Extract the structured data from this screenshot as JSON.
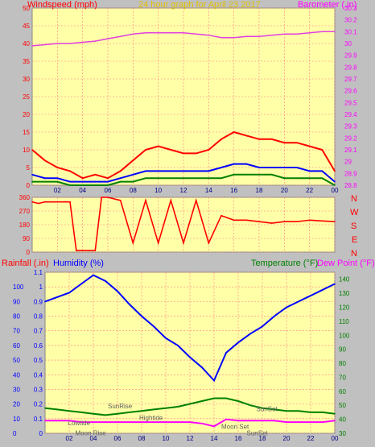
{
  "header": {
    "left": "Windspeed (mph)",
    "center": "24 hour graph for April 23 2017",
    "right": "Barometer (.in)"
  },
  "direction_letters": [
    "N",
    "W",
    "S",
    "E",
    "N"
  ],
  "bottom_header": {
    "rainfall": "Rainfall (.in)",
    "humidity": "Humidity (%)",
    "temperature": "Temperature (°F)",
    "dewpoint": "Dew Point (°F)"
  },
  "colors": {
    "background_panel": "#ffffa8",
    "frame": "#c0c0c0",
    "wind": "#ff0000",
    "wind_avg": "#0000ff",
    "wind_low": "#008000",
    "barometer": "#e040e0",
    "humidity": "#0000ff",
    "temperature": "#008000",
    "dewpoint": "#ff00ff",
    "grid": "#ff8080"
  },
  "chart_data": [
    {
      "type": "line",
      "panel": "wind-barometer",
      "x_ticks": [
        "02",
        "04",
        "06",
        "08",
        "10",
        "12",
        "14",
        "16",
        "18",
        "20",
        "22",
        "00"
      ],
      "y_left_ticks": [
        "0",
        "5",
        "10",
        "15",
        "20",
        "25",
        "30",
        "35",
        "40",
        "45",
        "50"
      ],
      "y_left_range": [
        0,
        50
      ],
      "y_right_ticks": [
        "28.8",
        "28.9",
        "29",
        "29.1",
        "29.2",
        "29.3",
        "29.4",
        "29.5",
        "29.6",
        "29.7",
        "29.8",
        "29.9",
        "30",
        "30.1",
        "30.2",
        "30.3"
      ],
      "y_right_range": [
        28.8,
        30.3
      ],
      "series": [
        {
          "axis": "left",
          "x": [
            0,
            1,
            2,
            3,
            4,
            5,
            6,
            7,
            8,
            9,
            10,
            11,
            12,
            13,
            14,
            15,
            16,
            17,
            18,
            19,
            20,
            21,
            22,
            23,
            24
          ],
          "y": [
            10,
            7,
            5,
            4,
            2,
            3,
            2,
            4,
            7,
            10,
            11,
            10,
            9,
            9,
            10,
            13,
            15,
            14,
            13,
            13,
            12,
            12,
            11,
            10,
            4
          ]
        },
        {
          "axis": "left",
          "x": [
            0,
            1,
            2,
            3,
            4,
            5,
            6,
            7,
            8,
            9,
            10,
            11,
            12,
            13,
            14,
            15,
            16,
            17,
            18,
            19,
            20,
            21,
            22,
            23,
            24
          ],
          "y": [
            3,
            2,
            2,
            1,
            1,
            1,
            1,
            2,
            3,
            4,
            4,
            4,
            4,
            4,
            4,
            5,
            6,
            6,
            5,
            5,
            5,
            5,
            4,
            4,
            1
          ]
        },
        {
          "axis": "left",
          "x": [
            0,
            1,
            2,
            3,
            4,
            5,
            6,
            7,
            8,
            9,
            10,
            11,
            12,
            13,
            14,
            15,
            16,
            17,
            18,
            19,
            20,
            21,
            22,
            23,
            24
          ],
          "y": [
            1,
            1,
            1,
            0,
            0,
            0,
            0,
            1,
            1,
            2,
            2,
            2,
            2,
            2,
            2,
            2,
            3,
            3,
            3,
            3,
            2,
            2,
            2,
            2,
            0
          ]
        },
        {
          "axis": "right",
          "x": [
            0,
            1,
            2,
            3,
            4,
            5,
            6,
            7,
            8,
            9,
            10,
            11,
            12,
            13,
            14,
            15,
            16,
            17,
            18,
            19,
            20,
            21,
            22,
            23,
            24
          ],
          "y": [
            29.98,
            29.99,
            30.0,
            30.0,
            30.01,
            30.02,
            30.04,
            30.06,
            30.08,
            30.09,
            30.09,
            30.09,
            30.09,
            30.08,
            30.07,
            30.05,
            30.05,
            30.06,
            30.06,
            30.07,
            30.08,
            30.08,
            30.09,
            30.1,
            30.1
          ]
        }
      ]
    },
    {
      "type": "line",
      "panel": "wind-direction",
      "y_ticks": [
        "0",
        "90",
        "180",
        "270",
        "360"
      ],
      "y_range": [
        0,
        360
      ],
      "series": [
        {
          "x": [
            0,
            0.5,
            1,
            2,
            3,
            3.5,
            4,
            5,
            5.5,
            6,
            7,
            8,
            9,
            10,
            11,
            12,
            13,
            14,
            15,
            16,
            17,
            18,
            19,
            20,
            21,
            22,
            23,
            24
          ],
          "y": [
            330,
            320,
            330,
            330,
            330,
            10,
            10,
            10,
            360,
            360,
            340,
            60,
            340,
            60,
            340,
            60,
            340,
            60,
            240,
            210,
            210,
            200,
            190,
            200,
            200,
            210,
            205,
            200
          ]
        }
      ]
    },
    {
      "type": "line",
      "panel": "rain-humidity-temp",
      "x_ticks": [
        "02",
        "04",
        "06",
        "08",
        "10",
        "12",
        "14",
        "16",
        "18",
        "20",
        "22",
        "00"
      ],
      "y_left_ticks": [
        "0",
        "0.1",
        "0.2",
        "0.3",
        "0.4",
        "0.5",
        "0.6",
        "0.7",
        "0.8",
        "0.9",
        "1",
        "1.1"
      ],
      "y_left_range": [
        0,
        1.1
      ],
      "y_left_outer_ticks": [
        "0",
        "10",
        "20",
        "30",
        "40",
        "50",
        "60",
        "70",
        "80",
        "90",
        "100"
      ],
      "y_right_ticks": [
        "30",
        "40",
        "50",
        "60",
        "70",
        "80",
        "90",
        "100",
        "110",
        "120",
        "130",
        "140"
      ],
      "y_right_range": [
        30,
        145
      ],
      "annotations": [
        "SunRise",
        "Lowtide",
        "Moon Rise",
        "Hightide",
        "Moon Set",
        "SunSet",
        "SunSet"
      ],
      "series": [
        {
          "axis": "left",
          "x": [
            0,
            1,
            2,
            3,
            4,
            5,
            6,
            7,
            8,
            9,
            10,
            11,
            12,
            13,
            14,
            15,
            16,
            17,
            18,
            19,
            20,
            21,
            22,
            23,
            24
          ],
          "y": [
            0.9,
            0.93,
            0.96,
            1.02,
            1.08,
            1.04,
            0.97,
            0.88,
            0.8,
            0.73,
            0.65,
            0.6,
            0.52,
            0.45,
            0.36,
            0.55,
            0.62,
            0.68,
            0.73,
            0.8,
            0.86,
            0.9,
            0.94,
            0.98,
            1.02
          ]
        },
        {
          "axis": "right",
          "x": [
            0,
            1,
            2,
            3,
            4,
            5,
            6,
            7,
            8,
            9,
            10,
            11,
            12,
            13,
            14,
            15,
            16,
            17,
            18,
            19,
            20,
            21,
            22,
            23,
            24
          ],
          "y": [
            48,
            47,
            46,
            45,
            44,
            43,
            44,
            45,
            46,
            47,
            48,
            49,
            51,
            53,
            55,
            55,
            53,
            50,
            48,
            47,
            46,
            46,
            45,
            45,
            44
          ]
        },
        {
          "axis": "right",
          "x": [
            0,
            1,
            2,
            3,
            4,
            5,
            6,
            7,
            8,
            9,
            10,
            11,
            12,
            13,
            14,
            15,
            16,
            17,
            18,
            19,
            20,
            21,
            22,
            23,
            24
          ],
          "y": [
            39,
            39,
            39,
            38,
            38,
            38,
            38,
            38,
            38,
            38,
            38,
            38,
            38,
            37,
            35,
            40,
            39,
            39,
            39,
            39,
            38,
            38,
            38,
            38,
            39
          ]
        }
      ]
    }
  ]
}
